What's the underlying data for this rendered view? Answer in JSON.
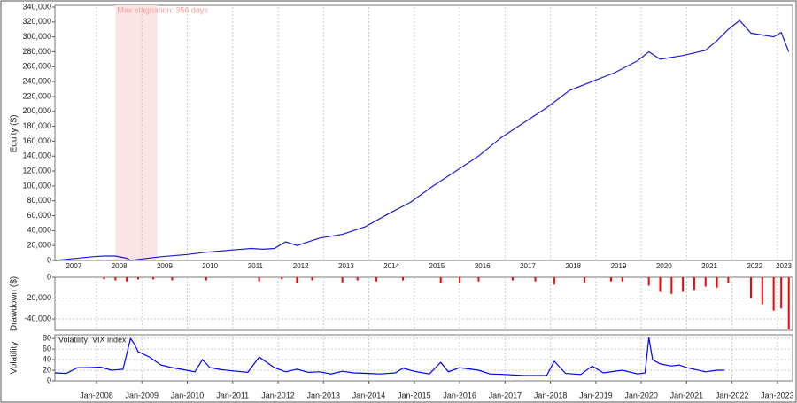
{
  "chart_data": [
    {
      "type": "line",
      "ylabel": "Equity ($)",
      "annotation": "Max stagnation: 356 days",
      "stagnation_range": [
        "2008-06",
        "2009-05"
      ],
      "xlim": [
        "2007-02",
        "2023-05"
      ],
      "ylim": [
        0,
        340000
      ],
      "yticks": [
        0,
        {
          "value": 20000,
          "label": "20,000"
        },
        {
          "value": 40000,
          "label": "40,000"
        },
        {
          "value": 60000,
          "label": "60,000"
        },
        {
          "value": 80000,
          "label": "80,000"
        },
        {
          "value": 100000,
          "label": "100,000"
        },
        {
          "value": 120000,
          "label": "120,000"
        },
        {
          "value": 140000,
          "label": "140,000"
        },
        {
          "value": 160000,
          "label": "160,000"
        },
        {
          "value": 180000,
          "label": "180,000"
        },
        {
          "value": 200000,
          "label": "200,000"
        },
        {
          "value": 220000,
          "label": "220,000"
        },
        {
          "value": 240000,
          "label": "240,000"
        },
        {
          "value": 260000,
          "label": "260,000"
        },
        {
          "value": 280000,
          "label": "280,000"
        },
        {
          "value": 300000,
          "label": "300,000"
        },
        {
          "value": 320000,
          "label": "320,000"
        },
        {
          "value": 340000,
          "label": "340,000"
        }
      ],
      "year_labels": [
        "2007",
        "2008",
        "2009",
        "2010",
        "2011",
        "2012",
        "2013",
        "2014",
        "2015",
        "2016",
        "2017",
        "2018",
        "2019",
        "2020",
        "2021",
        "2022",
        "2023"
      ],
      "series": [
        {
          "name": "Equity",
          "color": "#1c1cd6",
          "x": [
            "2007-02",
            "2007-06",
            "2007-12",
            "2008-03",
            "2008-06",
            "2008-09",
            "2008-10",
            "2009-01",
            "2009-06",
            "2010-01",
            "2010-06",
            "2011-01",
            "2011-06",
            "2011-09",
            "2011-12",
            "2012-03",
            "2012-06",
            "2012-12",
            "2013-06",
            "2013-12",
            "2014-06",
            "2014-12",
            "2015-06",
            "2015-12",
            "2016-06",
            "2016-12",
            "2017-06",
            "2017-12",
            "2018-06",
            "2018-12",
            "2019-06",
            "2019-12",
            "2020-03",
            "2020-06",
            "2020-12",
            "2021-06",
            "2021-09",
            "2021-12",
            "2022-03",
            "2022-06",
            "2022-12",
            "2023-02",
            "2023-04"
          ],
          "values": [
            0,
            2000,
            5000,
            6000,
            6000,
            3000,
            0,
            2000,
            5000,
            8000,
            11000,
            14000,
            16000,
            15000,
            16000,
            25000,
            20000,
            30000,
            35000,
            45000,
            62000,
            78000,
            100000,
            120000,
            140000,
            165000,
            185000,
            205000,
            228000,
            240000,
            252000,
            268000,
            280000,
            270000,
            275000,
            282000,
            295000,
            310000,
            322000,
            305000,
            300000,
            306000,
            280000
          ]
        }
      ]
    },
    {
      "type": "bar",
      "ylabel": "Drawdown ($)",
      "xlim": [
        "2007-02",
        "2023-05"
      ],
      "ylim": [
        -51000,
        0
      ],
      "yticks": [
        0,
        {
          "value": -20000,
          "label": "-20,000"
        },
        {
          "value": -40000,
          "label": "-40,000"
        }
      ],
      "series": [
        {
          "name": "Drawdown",
          "color": "#ff0000",
          "x": [
            "2008-03",
            "2008-06",
            "2008-09",
            "2008-12",
            "2009-04",
            "2009-09",
            "2010-06",
            "2011-08",
            "2012-02",
            "2012-06",
            "2012-10",
            "2013-06",
            "2013-10",
            "2014-03",
            "2014-10",
            "2015-08",
            "2016-01",
            "2016-06",
            "2017-03",
            "2017-09",
            "2018-02",
            "2018-10",
            "2019-05",
            "2019-08",
            "2020-03",
            "2020-06",
            "2020-09",
            "2020-12",
            "2021-03",
            "2021-06",
            "2021-09",
            "2021-12",
            "2022-06",
            "2022-09",
            "2022-12",
            "2023-02",
            "2023-04"
          ],
          "values": [
            -2000,
            -3000,
            -4000,
            -2000,
            -2000,
            -3000,
            -3000,
            -4000,
            -2000,
            -6000,
            -3000,
            -5000,
            -3000,
            -4000,
            -3000,
            -6000,
            -6000,
            -4000,
            -3000,
            -4000,
            -7000,
            -5000,
            -4000,
            -4000,
            -8000,
            -14000,
            -16000,
            -14000,
            -12000,
            -9000,
            -10000,
            -6000,
            -20000,
            -26000,
            -32000,
            -30000,
            -50000
          ]
        }
      ]
    },
    {
      "type": "line",
      "ylabel": "Volatility",
      "legend": "Volatility: VIX index",
      "xlim": [
        "2007-02",
        "2023-05"
      ],
      "ylim": [
        0,
        87
      ],
      "yticks": [
        0,
        20,
        40,
        60,
        80
      ],
      "xticks": [
        {
          "value": "2008-01",
          "label": "Jan-2008"
        },
        {
          "value": "2009-01",
          "label": "Jan-2009"
        },
        {
          "value": "2010-01",
          "label": "Jan-2010"
        },
        {
          "value": "2011-01",
          "label": "Jan-2011"
        },
        {
          "value": "2012-01",
          "label": "Jan-2012"
        },
        {
          "value": "2013-01",
          "label": "Jan-2013"
        },
        {
          "value": "2014-01",
          "label": "Jan-2014"
        },
        {
          "value": "2015-01",
          "label": "Jan-2015"
        },
        {
          "value": "2016-01",
          "label": "Jan-2016"
        },
        {
          "value": "2017-01",
          "label": "Jan-2017"
        },
        {
          "value": "2018-01",
          "label": "Jan-2018"
        },
        {
          "value": "2019-01",
          "label": "Jan-2019"
        },
        {
          "value": "2020-01",
          "label": "Jan-2020"
        },
        {
          "value": "2021-01",
          "label": "Jan-2021"
        },
        {
          "value": "2022-01",
          "label": "Jan-2022"
        },
        {
          "value": "2023-01",
          "label": "Jan-2023"
        }
      ],
      "series": [
        {
          "name": "VIX",
          "color": "#0000ff",
          "x": [
            "2007-02",
            "2007-05",
            "2007-08",
            "2007-11",
            "2008-02",
            "2008-05",
            "2008-08",
            "2008-10",
            "2008-11",
            "2008-12",
            "2009-03",
            "2009-06",
            "2009-09",
            "2009-12",
            "2010-03",
            "2010-05",
            "2010-07",
            "2010-10",
            "2011-02",
            "2011-05",
            "2011-08",
            "2011-10",
            "2011-12",
            "2012-03",
            "2012-06",
            "2012-09",
            "2012-12",
            "2013-03",
            "2013-06",
            "2013-09",
            "2014-01",
            "2014-04",
            "2014-08",
            "2014-10",
            "2015-01",
            "2015-05",
            "2015-08",
            "2015-10",
            "2016-01",
            "2016-06",
            "2016-09",
            "2017-01",
            "2017-06",
            "2017-12",
            "2018-02",
            "2018-05",
            "2018-09",
            "2018-12",
            "2019-03",
            "2019-08",
            "2019-12",
            "2020-02",
            "2020-03",
            "2020-04",
            "2020-06",
            "2020-09",
            "2020-11",
            "2021-01",
            "2021-03",
            "2021-06",
            "2021-09",
            "2021-11"
          ],
          "values": [
            15,
            14,
            25,
            25,
            26,
            20,
            22,
            80,
            70,
            55,
            45,
            30,
            25,
            21,
            17,
            40,
            25,
            21,
            18,
            16,
            45,
            35,
            25,
            17,
            22,
            16,
            17,
            13,
            18,
            15,
            14,
            13,
            15,
            24,
            18,
            13,
            35,
            17,
            25,
            20,
            13,
            12,
            10,
            10,
            37,
            14,
            12,
            28,
            15,
            20,
            13,
            15,
            82,
            40,
            32,
            28,
            30,
            25,
            22,
            17,
            20,
            20
          ]
        }
      ]
    }
  ]
}
